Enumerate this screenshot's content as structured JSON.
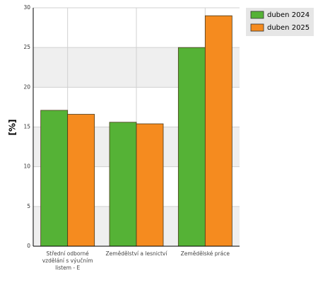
{
  "chart_data": {
    "type": "bar",
    "y_label": "[%]",
    "categories": [
      "Střední odborné vzdělání s výučním listem - E",
      "Zemědělství a lesnictví",
      "Zemědělské práce"
    ],
    "series": [
      {
        "name": "duben 2024",
        "color": "#55b236",
        "values": [
          17.1,
          15.6,
          25.0
        ]
      },
      {
        "name": "duben 2025",
        "color": "#f58b1f",
        "values": [
          16.6,
          15.4,
          29.0
        ]
      }
    ],
    "ylim": [
      0,
      30
    ],
    "yticks": [
      0,
      5,
      10,
      15,
      20,
      25,
      30
    ],
    "grid": true
  }
}
